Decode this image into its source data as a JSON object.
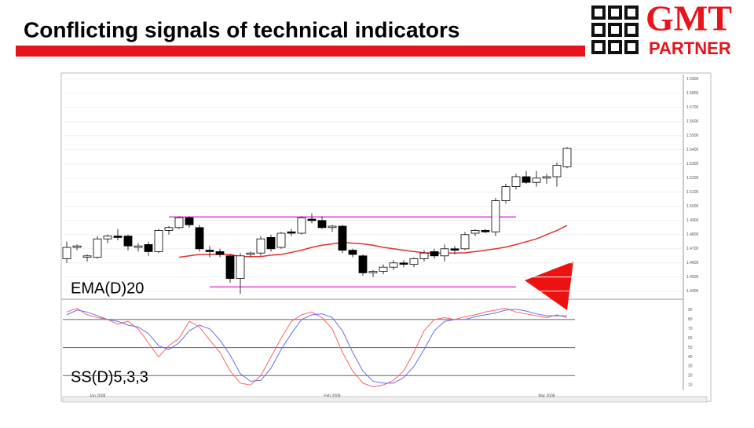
{
  "title": "Conflicting signals of technical indicators",
  "logo": {
    "name": "GMT",
    "tagline": "PARTNER"
  },
  "chart_data": [
    {
      "type": "candlestick",
      "label": "EMA(D)20",
      "open": [
        1.463,
        1.471,
        1.464,
        1.464,
        1.477,
        1.479,
        1.479,
        1.471,
        1.473,
        1.468,
        1.483,
        1.485,
        1.492,
        1.485,
        1.469,
        1.468,
        1.465,
        1.449,
        1.466,
        1.467,
        1.478,
        1.471,
        1.482,
        1.481,
        1.491,
        1.49,
        1.485,
        1.486,
        1.469,
        1.465,
        1.453,
        1.454,
        1.457,
        1.46,
        1.459,
        1.463,
        1.468,
        1.465,
        1.47,
        1.47,
        1.481,
        1.483,
        1.482,
        1.504,
        1.514,
        1.521,
        1.517,
        1.52,
        1.521,
        1.528
      ],
      "high": [
        1.475,
        1.473,
        1.466,
        1.479,
        1.48,
        1.484,
        1.48,
        1.474,
        1.475,
        1.484,
        1.486,
        1.493,
        1.493,
        1.487,
        1.472,
        1.47,
        1.466,
        1.467,
        1.468,
        1.479,
        1.48,
        1.482,
        1.484,
        1.493,
        1.495,
        1.493,
        1.487,
        1.487,
        1.47,
        1.466,
        1.455,
        1.459,
        1.462,
        1.462,
        1.464,
        1.469,
        1.47,
        1.473,
        1.472,
        1.482,
        1.484,
        1.484,
        1.506,
        1.516,
        1.523,
        1.525,
        1.525,
        1.523,
        1.531,
        1.542
      ],
      "low": [
        1.46,
        1.469,
        1.461,
        1.463,
        1.474,
        1.476,
        1.469,
        1.468,
        1.465,
        1.467,
        1.48,
        1.484,
        1.485,
        1.468,
        1.464,
        1.464,
        1.446,
        1.438,
        1.464,
        1.465,
        1.468,
        1.47,
        1.479,
        1.48,
        1.488,
        1.484,
        1.482,
        1.467,
        1.464,
        1.451,
        1.45,
        1.452,
        1.455,
        1.457,
        1.457,
        1.461,
        1.463,
        1.461,
        1.466,
        1.469,
        1.479,
        1.481,
        1.479,
        1.502,
        1.512,
        1.516,
        1.514,
        1.516,
        1.514,
        1.527
      ],
      "close": [
        1.471,
        1.472,
        1.465,
        1.477,
        1.479,
        1.478,
        1.472,
        1.472,
        1.468,
        1.483,
        1.485,
        1.492,
        1.487,
        1.47,
        1.468,
        1.466,
        1.449,
        1.465,
        1.467,
        1.477,
        1.47,
        1.481,
        1.481,
        1.492,
        1.49,
        1.485,
        1.486,
        1.469,
        1.466,
        1.453,
        1.454,
        1.457,
        1.46,
        1.459,
        1.463,
        1.467,
        1.465,
        1.47,
        1.469,
        1.48,
        1.483,
        1.482,
        1.504,
        1.514,
        1.521,
        1.517,
        1.52,
        1.521,
        1.529,
        1.541
      ],
      "ema": {
        "color": "#e03030",
        "values": [
          null,
          null,
          null,
          null,
          null,
          null,
          null,
          null,
          null,
          null,
          null,
          1.464,
          1.465,
          1.466,
          1.466,
          1.466,
          1.466,
          1.4645,
          1.4645,
          1.4645,
          1.4655,
          1.466,
          1.4675,
          1.469,
          1.471,
          1.4725,
          1.4735,
          1.4745,
          1.474,
          1.4735,
          1.4725,
          1.471,
          1.47,
          1.469,
          1.468,
          1.4672,
          1.467,
          1.467,
          1.467,
          1.4672,
          1.468,
          1.469,
          1.47,
          1.4712,
          1.473,
          1.475,
          1.477,
          1.48,
          1.483,
          1.4865
        ]
      },
      "hlines": [
        {
          "value": 1.4925,
          "from": 10,
          "to": 44,
          "color": "#e040e0"
        },
        {
          "value": 1.443,
          "from": 14,
          "to": 44,
          "color": "#e040e0"
        }
      ],
      "ylim": [
        1.436,
        1.591
      ],
      "yticks": [
        {
          "value": 1.44,
          "label": "1.4400"
        },
        {
          "value": 1.45,
          "label": "1.4500"
        },
        {
          "value": 1.46,
          "label": "1.4600"
        },
        {
          "value": 1.47,
          "label": "1.4700"
        },
        {
          "value": 1.48,
          "label": "1.4800"
        },
        {
          "value": 1.49,
          "label": "1.4900"
        },
        {
          "value": 1.5,
          "label": "1.5000"
        },
        {
          "value": 1.51,
          "label": "1.5100"
        },
        {
          "value": 1.52,
          "label": "1.5200"
        },
        {
          "value": 1.53,
          "label": "1.5300"
        },
        {
          "value": 1.54,
          "label": "1.5400"
        },
        {
          "value": 1.55,
          "label": "1.5500"
        },
        {
          "value": 1.56,
          "label": "1.5600"
        },
        {
          "value": 1.57,
          "label": "1.5700"
        },
        {
          "value": 1.58,
          "label": "1.5800"
        },
        {
          "value": 1.59,
          "label": "1.5900"
        }
      ],
      "grid": true
    },
    {
      "type": "line",
      "label": "SS(D)5,3,3",
      "categories": [
        null,
        null,
        null,
        "Jan 2008",
        null,
        null,
        null,
        null,
        null,
        null,
        null,
        null,
        null,
        null,
        null,
        null,
        null,
        null,
        null,
        null,
        null,
        null,
        null,
        null,
        null,
        null,
        "Feb 2008",
        null,
        null,
        null,
        null,
        null,
        null,
        null,
        null,
        null,
        null,
        null,
        null,
        null,
        null,
        null,
        null,
        null,
        null,
        null,
        null,
        "Mar 2008",
        null,
        null
      ],
      "series": [
        {
          "color": "#ff6060",
          "values": [
            88,
            92,
            85,
            82,
            80,
            75,
            78,
            70,
            55,
            40,
            52,
            60,
            78,
            72,
            58,
            45,
            25,
            12,
            10,
            20,
            40,
            60,
            78,
            85,
            88,
            82,
            70,
            45,
            25,
            12,
            8,
            10,
            15,
            25,
            45,
            68,
            80,
            82,
            80,
            83,
            85,
            88,
            90,
            92,
            88,
            86,
            84,
            82,
            85,
            82
          ]
        },
        {
          "color": "#6070ee",
          "values": [
            85,
            90,
            88,
            84,
            80,
            78,
            74,
            72,
            65,
            52,
            48,
            55,
            68,
            74,
            70,
            58,
            42,
            22,
            14,
            15,
            28,
            48,
            65,
            80,
            85,
            86,
            82,
            68,
            45,
            25,
            14,
            12,
            12,
            18,
            30,
            48,
            68,
            78,
            80,
            80,
            83,
            85,
            87,
            90,
            91,
            89,
            86,
            84,
            84,
            84
          ]
        }
      ],
      "ylim": [
        6,
        100
      ],
      "yticks": [
        10,
        20,
        30,
        40,
        50,
        60,
        70,
        80,
        90
      ],
      "levels": [
        20,
        50,
        80
      ]
    }
  ]
}
